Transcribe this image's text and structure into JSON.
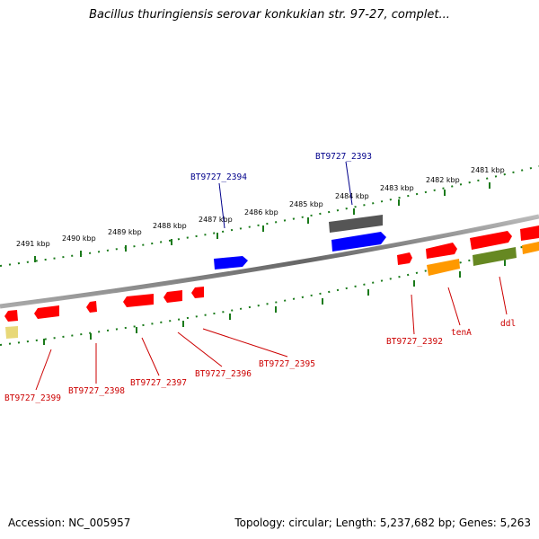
{
  "title": "Bacillus thuringiensis serovar konkukian str. 97-27, complet...",
  "footer": {
    "accession": "Accession: NC_005957",
    "summary": "Topology: circular; Length: 5,237,682 bp; Genes: 5,263"
  },
  "colors": {
    "backbone": "#888888",
    "ruler": "#1a7a1a",
    "forward_label": "#00008b",
    "reverse_label": "#cc0000",
    "gene_red": "#ff0000",
    "gene_blue": "#0000ff",
    "gene_gray": "#555555",
    "gene_orange": "#ff9900",
    "gene_olive": "#668822",
    "gene_pale": "#e8d878"
  },
  "ruler_labels": [
    "2491 kbp",
    "2490 kbp",
    "2489 kbp",
    "2488 kbp",
    "2487 kbp",
    "2486 kbp",
    "2485 kbp",
    "2484 kbp",
    "2483 kbp",
    "2482 kbp",
    "2481 kbp"
  ],
  "forward_genes": [
    "BT9727_2394",
    "BT9727_2393"
  ],
  "reverse_genes": [
    "BT9727_2399",
    "BT9727_2398",
    "BT9727_2397",
    "BT9727_2396",
    "BT9727_2395",
    "BT9727_2392",
    "tenA",
    "ddl"
  ]
}
